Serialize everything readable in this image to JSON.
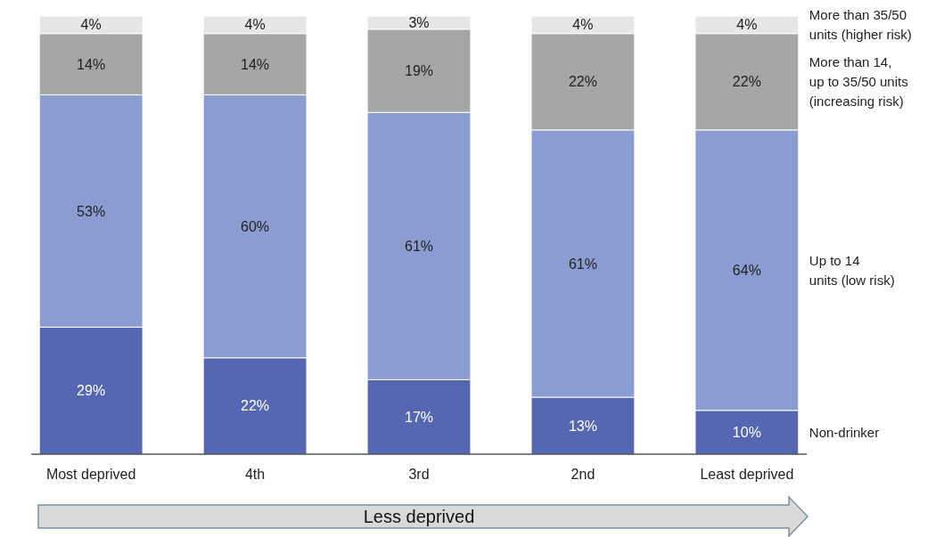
{
  "chart_data": {
    "type": "bar",
    "stacked": true,
    "legend": "right",
    "categories": [
      "Most deprived",
      "4th",
      "3rd",
      "2nd",
      "Least deprived"
    ],
    "series": [
      {
        "name": "Non-drinker",
        "color": "#5567b3",
        "values": [
          29,
          22,
          17,
          13,
          10
        ],
        "value_labels": [
          "29%",
          "22%",
          "17%",
          "13%",
          "10%"
        ]
      },
      {
        "name": "Up to 14\nunits (low risk)",
        "color": "#8b9cd0",
        "values": [
          53,
          60,
          61,
          61,
          64
        ],
        "value_labels": [
          "53%",
          "60%",
          "61%",
          "61%",
          "64%"
        ]
      },
      {
        "name": "More than 14,\nup to 35/50 units\n(increasing risk)",
        "color": "#a6a6a6",
        "values": [
          14,
          14,
          19,
          22,
          22
        ],
        "value_labels": [
          "14%",
          "14%",
          "19%",
          "22%",
          "22%"
        ]
      },
      {
        "name": "More than 35/50\nunits (higher risk)",
        "color": "#e6e6e6",
        "values": [
          4,
          4,
          3,
          4,
          4
        ],
        "value_labels": [
          "4%",
          "4%",
          "3%",
          "4%",
          "4%"
        ]
      }
    ],
    "annotations": [
      "Less deprived"
    ]
  }
}
